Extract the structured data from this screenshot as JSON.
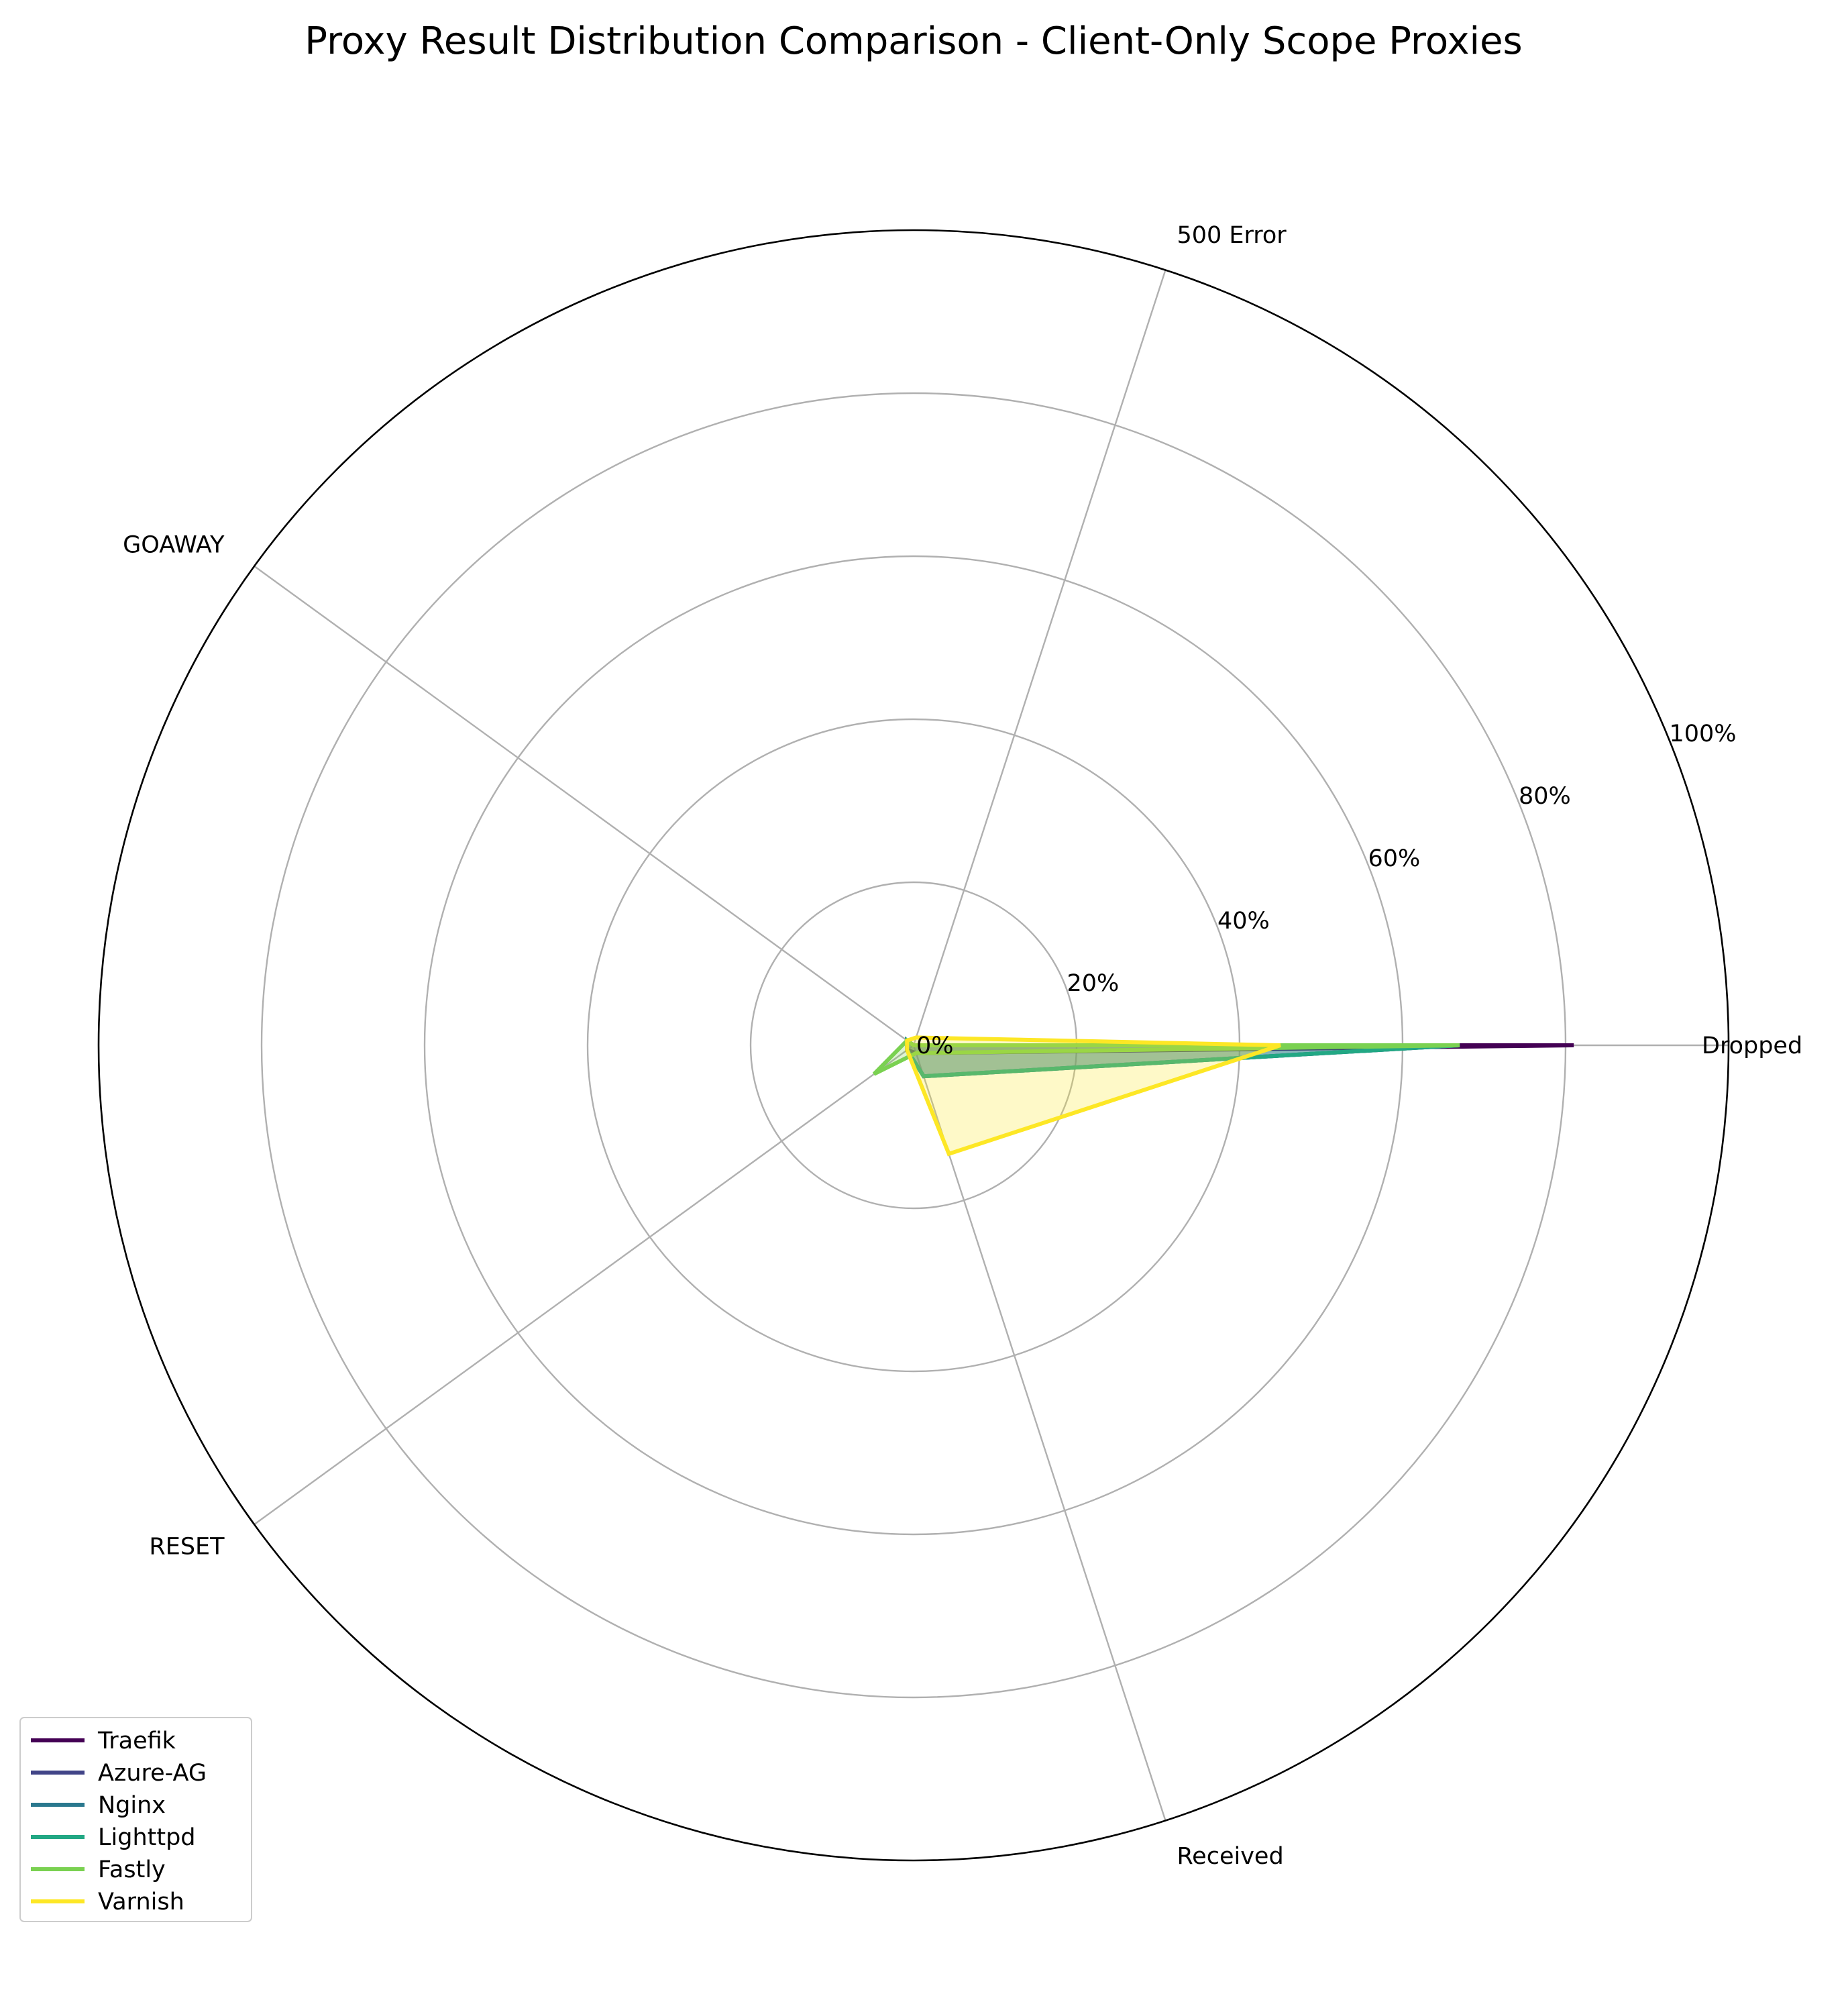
{
  "chart_data": {
    "type": "radar",
    "title": "Proxy Result Distribution Comparison - Client-Only Scope Proxies",
    "categories": [
      "Dropped",
      "500 Error",
      "GOAWAY",
      "RESET",
      "Received"
    ],
    "radial_ticks": [
      "0%",
      "20%",
      "40%",
      "60%",
      "80%",
      "100%"
    ],
    "radial_range": [
      0,
      100
    ],
    "grid": true,
    "legend_position": "lower-left",
    "series": [
      {
        "name": "Traefik",
        "color": "#440154",
        "values": [
          81,
          0,
          1,
          1,
          1
        ]
      },
      {
        "name": "Azure-AG",
        "color": "#414487",
        "values": [
          67,
          0,
          1,
          1,
          4
        ]
      },
      {
        "name": "Nginx",
        "color": "#2a788e",
        "values": [
          67,
          0,
          1,
          1,
          4
        ]
      },
      {
        "name": "Lighttpd",
        "color": "#22a884",
        "values": [
          67,
          0,
          1,
          1,
          4
        ]
      },
      {
        "name": "Fastly",
        "color": "#7ad151",
        "values": [
          67,
          0,
          1,
          6,
          1
        ]
      },
      {
        "name": "Varnish",
        "color": "#fde725",
        "values": [
          45,
          1,
          1,
          1,
          14
        ]
      }
    ]
  }
}
